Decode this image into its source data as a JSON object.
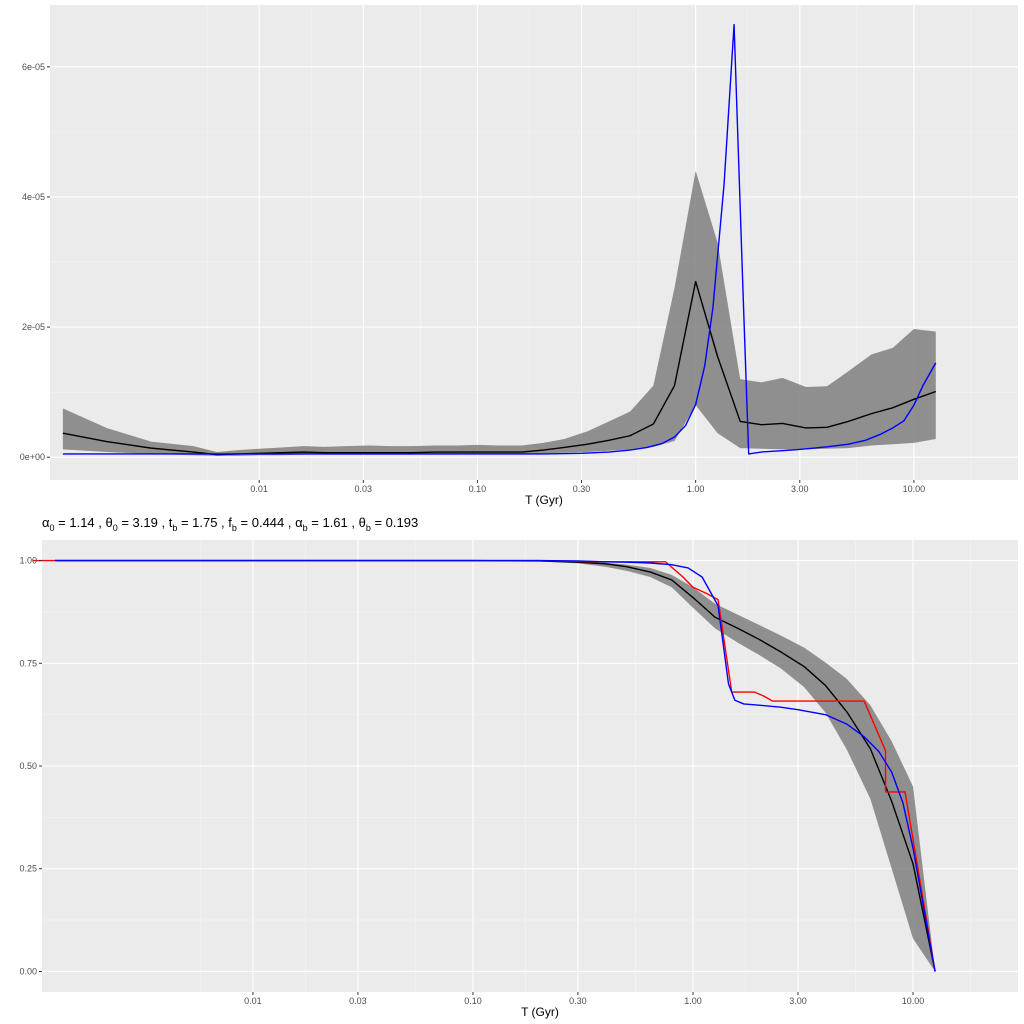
{
  "caption": {
    "parts": [
      {
        "sym": "α",
        "sub": "0",
        "val": "1.14"
      },
      {
        "sym": "θ",
        "sub": "0",
        "val": "3.19"
      },
      {
        "sym": "t",
        "sub": "b",
        "val": "1.75"
      },
      {
        "sym": "f",
        "sub": "b",
        "val": "0.444"
      },
      {
        "sym": "α",
        "sub": "b",
        "val": "1.61"
      },
      {
        "sym": "θ",
        "sub": "b",
        "val": "0.193"
      }
    ]
  },
  "chart_data": [
    {
      "type": "line",
      "xlabel": "T (Gyr)",
      "ylabel": "",
      "xscale": "log",
      "xlim": [
        0.0011,
        30
      ],
      "ylim": [
        -3.5e-06,
        6.95e-05
      ],
      "xticks": [
        0.01,
        0.03,
        0.1,
        0.3,
        1.0,
        3.0,
        10.0
      ],
      "xtick_labels": [
        "0.01",
        "0.03",
        "0.10",
        "0.30",
        "1.00",
        "3.00",
        "10.00"
      ],
      "yticks": [
        0,
        2e-05,
        4e-05,
        6e-05
      ],
      "ytick_labels": [
        "0e+00",
        "2e-05",
        "4e-05",
        "6e-05"
      ],
      "grid": true,
      "band": {
        "x": [
          0.00126,
          0.002,
          0.0032,
          0.005,
          0.0064,
          0.008,
          0.01,
          0.0126,
          0.016,
          0.02,
          0.025,
          0.032,
          0.04,
          0.05,
          0.064,
          0.08,
          0.1,
          0.126,
          0.16,
          0.2,
          0.25,
          0.32,
          0.4,
          0.5,
          0.64,
          0.8,
          1.0,
          1.26,
          1.6,
          2.0,
          2.5,
          3.2,
          4.0,
          5.0,
          6.4,
          8.0,
          10.0,
          12.6
        ],
        "upper": [
          7.5e-06,
          4.5e-06,
          2.4e-06,
          1.7e-06,
          8e-07,
          1.1e-06,
          1.3e-06,
          1.5e-06,
          1.7e-06,
          1.6e-06,
          1.7e-06,
          1.8e-06,
          1.7e-06,
          1.7e-06,
          1.8e-06,
          1.8e-06,
          1.9e-06,
          1.8e-06,
          1.8e-06,
          2.2e-06,
          2.8e-06,
          4e-06,
          5.5e-06,
          7e-06,
          1.1e-05,
          2.6e-05,
          4.4e-05,
          3.3e-05,
          1.2e-05,
          1.15e-05,
          1.22e-05,
          1.08e-05,
          1.09e-05,
          1.32e-05,
          1.58e-05,
          1.68e-05,
          1.97e-05,
          1.93e-05
        ],
        "lower": [
          1.2e-06,
          8e-07,
          5e-07,
          3e-07,
          2e-07,
          2e-07,
          3e-07,
          3e-07,
          4e-07,
          4e-07,
          4e-07,
          4e-07,
          4e-07,
          4e-07,
          4e-07,
          4e-07,
          5e-07,
          5e-07,
          5e-07,
          6e-07,
          7e-07,
          8e-07,
          1e-06,
          1.2e-06,
          1.6e-06,
          2.5e-06,
          8e-06,
          3.7e-06,
          1.4e-06,
          1.3e-06,
          1.2e-06,
          1.2e-06,
          1.3e-06,
          1.4e-06,
          1.8e-06,
          2e-06,
          2.2e-06,
          2.8e-06
        ]
      },
      "series": [
        {
          "color": "#000000",
          "x": [
            0.00126,
            0.002,
            0.0032,
            0.005,
            0.0064,
            0.008,
            0.01,
            0.0126,
            0.016,
            0.02,
            0.025,
            0.032,
            0.04,
            0.05,
            0.064,
            0.08,
            0.1,
            0.126,
            0.16,
            0.2,
            0.25,
            0.32,
            0.4,
            0.5,
            0.64,
            0.8,
            1.0,
            1.26,
            1.6,
            2.0,
            2.5,
            3.2,
            4.0,
            5.0,
            6.4,
            8.0,
            10.0,
            12.6
          ],
          "y": [
            3.7e-06,
            2.4e-06,
            1.4e-06,
            8e-07,
            4e-07,
            5e-07,
            6e-07,
            7e-07,
            8e-07,
            7e-07,
            7e-07,
            7e-07,
            7e-07,
            7e-07,
            8e-07,
            8e-07,
            8e-07,
            8e-07,
            8e-07,
            1.1e-06,
            1.5e-06,
            2e-06,
            2.6e-06,
            3.3e-06,
            5.1e-06,
            1.1e-05,
            2.7e-05,
            1.55e-05,
            5.5e-06,
            5e-06,
            5.2e-06,
            4.5e-06,
            4.6e-06,
            5.5e-06,
            6.7e-06,
            7.6e-06,
            8.9e-06,
            1.01e-05
          ]
        },
        {
          "color": "#0000ff",
          "x": [
            0.00126,
            0.005,
            0.01,
            0.03,
            0.1,
            0.2,
            0.3,
            0.4,
            0.5,
            0.6,
            0.7,
            0.8,
            0.9,
            1.0,
            1.1,
            1.2,
            1.35,
            1.5,
            1.65,
            1.75,
            2.0,
            2.5,
            3.0,
            4.0,
            5.0,
            6.0,
            7.0,
            8.0,
            9.0,
            10.0,
            11.0,
            12.6
          ],
          "y": [
            5e-07,
            5e-07,
            5e-07,
            5e-07,
            5e-07,
            5e-07,
            6e-07,
            8e-07,
            1.1e-06,
            1.5e-06,
            2.1e-06,
            3.1e-06,
            4.9e-06,
            8.1e-06,
            1.4e-05,
            2.3e-05,
            4.2e-05,
            6.65e-05,
            2.5e-05,
            5e-07,
            8e-07,
            1e-06,
            1.2e-06,
            1.6e-06,
            2e-06,
            2.6e-06,
            3.5e-06,
            4.5e-06,
            5.6e-06,
            8e-06,
            1.1e-05,
            1.45e-05
          ]
        }
      ]
    },
    {
      "type": "line",
      "xlabel": "T (Gyr)",
      "ylabel": "",
      "xscale": "log",
      "xlim": [
        0.0011,
        30
      ],
      "ylim": [
        -0.05,
        1.05
      ],
      "xticks": [
        0.01,
        0.03,
        0.1,
        0.3,
        1.0,
        3.0,
        10.0
      ],
      "xtick_labels": [
        "0.01",
        "0.03",
        "0.10",
        "0.30",
        "1.00",
        "3.00",
        "10.00"
      ],
      "yticks": [
        0,
        0.25,
        0.5,
        0.75,
        1.0
      ],
      "ytick_labels": [
        "0.00",
        "0.25",
        "0.50",
        "0.75",
        "1.00"
      ],
      "grid": true,
      "band": {
        "x": [
          0.00126,
          0.01,
          0.1,
          0.2,
          0.3,
          0.4,
          0.5,
          0.64,
          0.8,
          1.0,
          1.26,
          1.6,
          2.0,
          2.5,
          3.2,
          4.0,
          5.0,
          6.4,
          8.0,
          10.0,
          12.6
        ],
        "upper": [
          1.0,
          1.0,
          1.0,
          0.999,
          0.997,
          0.995,
          0.99,
          0.982,
          0.965,
          0.935,
          0.895,
          0.868,
          0.843,
          0.818,
          0.788,
          0.752,
          0.712,
          0.648,
          0.56,
          0.45,
          0.0
        ],
        "lower": [
          1.0,
          1.0,
          1.0,
          0.998,
          0.993,
          0.985,
          0.975,
          0.96,
          0.935,
          0.885,
          0.835,
          0.8,
          0.77,
          0.738,
          0.692,
          0.63,
          0.54,
          0.42,
          0.25,
          0.08,
          0.0
        ]
      },
      "series": [
        {
          "color": "#000000",
          "x": [
            0.00126,
            0.01,
            0.1,
            0.2,
            0.3,
            0.4,
            0.5,
            0.64,
            0.8,
            1.0,
            1.26,
            1.6,
            2.0,
            2.5,
            3.2,
            4.0,
            5.0,
            6.4,
            8.0,
            10.0,
            12.6
          ],
          "y": [
            1.0,
            1.0,
            1.0,
            0.999,
            0.996,
            0.992,
            0.985,
            0.972,
            0.953,
            0.91,
            0.862,
            0.835,
            0.808,
            0.778,
            0.742,
            0.696,
            0.632,
            0.542,
            0.414,
            0.262,
            0.0
          ]
        },
        {
          "color": "#ff0000",
          "x": [
            0.001,
            0.2,
            0.3,
            0.4,
            0.5,
            0.64,
            0.75,
            0.9,
            1.0,
            1.15,
            1.3,
            1.5,
            1.5,
            1.9,
            2.1,
            2.3,
            3.0,
            4.0,
            5.0,
            6.0,
            6.0,
            7.5,
            7.5,
            9.2,
            9.2,
            12.6
          ],
          "y": [
            1.0,
            1.0,
            0.998,
            0.997,
            0.997,
            0.997,
            0.997,
            0.96,
            0.935,
            0.92,
            0.905,
            0.68,
            0.68,
            0.68,
            0.67,
            0.658,
            0.658,
            0.658,
            0.658,
            0.658,
            0.658,
            0.537,
            0.437,
            0.437,
            0.437,
            0.0
          ]
        },
        {
          "color": "#0000ff",
          "x": [
            0.00126,
            0.1,
            0.2,
            0.3,
            0.4,
            0.5,
            0.64,
            0.8,
            0.95,
            1.1,
            1.3,
            1.45,
            1.55,
            1.7,
            2.0,
            2.5,
            3.0,
            4.0,
            5.0,
            6.0,
            7.0,
            8.0,
            9.0,
            10.0,
            12.6
          ],
          "y": [
            1.0,
            1.0,
            1.0,
            0.999,
            0.997,
            0.996,
            0.994,
            0.99,
            0.982,
            0.96,
            0.89,
            0.7,
            0.66,
            0.651,
            0.648,
            0.643,
            0.637,
            0.625,
            0.602,
            0.571,
            0.535,
            0.485,
            0.41,
            0.3,
            0.0
          ]
        }
      ]
    }
  ]
}
